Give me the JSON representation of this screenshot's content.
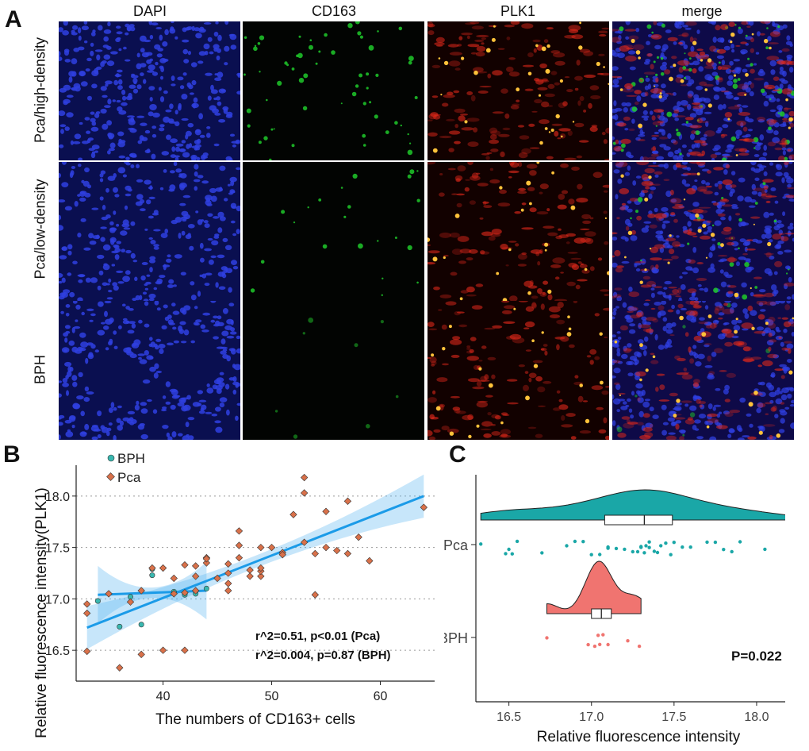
{
  "panel_a": {
    "letter": "A",
    "columns": [
      "DAPI",
      "CD163",
      "PLK1",
      "merge"
    ],
    "rows": [
      "Pca/high-density",
      "Pca/low-density",
      "BPH"
    ],
    "channel_colors": {
      "DAPI": "#2f3fe0",
      "CD163": "#1fc92a",
      "PLK1": "#e0281a"
    }
  },
  "panel_b": {
    "letter": "B",
    "chart_data": {
      "type": "scatter",
      "xlabel": "The numbers of CD163+ cells",
      "ylabel": "Relative fluorescence intensity(PLK1)",
      "xlim": [
        32,
        65
      ],
      "ylim": [
        16.2,
        18.3
      ],
      "x_ticks": [
        40,
        50,
        60
      ],
      "y_ticks": [
        16.5,
        17.0,
        17.5,
        18.0
      ],
      "grid": "horizontal-dotted",
      "legend": "top-left",
      "series": [
        {
          "name": "BPH",
          "color": "#39b8b0",
          "x": [
            34,
            37,
            39,
            39,
            41,
            42,
            43,
            44,
            36,
            38
          ],
          "y": [
            16.98,
            17.02,
            17.29,
            17.23,
            17.07,
            17.04,
            17.05,
            17.1,
            16.73,
            16.75
          ],
          "fit": {
            "x": [
              34,
              44
            ],
            "y": [
              17.04,
              17.08
            ]
          }
        },
        {
          "name": "Pca",
          "color": "#d9714a",
          "x": [
            33,
            33,
            33,
            35,
            36,
            37,
            38,
            38,
            39,
            40,
            40,
            41,
            41,
            42,
            42,
            42,
            43,
            43,
            43,
            44,
            44,
            44,
            45,
            46,
            46,
            46,
            46,
            47,
            47,
            47,
            48,
            48,
            49,
            49,
            49,
            49,
            50,
            51,
            51,
            52,
            53,
            53,
            53,
            54,
            54,
            55,
            55,
            56,
            57,
            57,
            58,
            59,
            64
          ],
          "y": [
            16.95,
            16.86,
            16.49,
            17.05,
            16.33,
            16.97,
            16.46,
            17.08,
            17.3,
            17.3,
            16.5,
            17.2,
            17.05,
            17.33,
            17.06,
            16.5,
            17.22,
            17.32,
            17.08,
            17.4,
            17.35,
            17.39,
            17.2,
            17.34,
            17.25,
            17.15,
            17.08,
            17.52,
            17.66,
            17.4,
            17.28,
            17.22,
            17.5,
            17.22,
            17.27,
            17.3,
            17.5,
            17.45,
            17.43,
            17.82,
            18.18,
            18.03,
            17.55,
            17.04,
            17.44,
            17.85,
            17.5,
            17.47,
            17.44,
            17.95,
            17.6,
            17.37,
            17.89
          ],
          "fit": {
            "x": [
              33,
              64
            ],
            "y": [
              16.72,
              18.0
            ]
          }
        }
      ],
      "annotations": [
        "r^2=0.51,   p<0.01 (Pca)",
        "r^2=0.004, p=0.87 (BPH)"
      ]
    }
  },
  "panel_c": {
    "letter": "C",
    "chart_data": {
      "type": "violin",
      "xlabel": "Relative fluorescence intensity",
      "xlim": [
        16.3,
        18.25
      ],
      "x_ticks": [
        16.5,
        17.0,
        17.5,
        18.0
      ],
      "categories": [
        "Pca",
        "BPH"
      ],
      "p_value": "P=0.022",
      "series": [
        {
          "name": "Pca",
          "color": "#1aa7a7",
          "range": [
            16.33,
            18.19
          ],
          "box": {
            "q1": 17.08,
            "median": 17.32,
            "q3": 17.49
          },
          "points": [
            16.33,
            16.48,
            16.5,
            16.52,
            16.55,
            16.7,
            16.85,
            16.9,
            16.95,
            17.0,
            17.05,
            17.1,
            17.1,
            17.15,
            17.2,
            17.25,
            17.28,
            17.3,
            17.3,
            17.32,
            17.33,
            17.35,
            17.35,
            17.38,
            17.4,
            17.42,
            17.45,
            17.48,
            17.5,
            17.55,
            17.6,
            17.7,
            17.75,
            17.8,
            17.85,
            17.9,
            18.05,
            18.19
          ]
        },
        {
          "name": "BPH",
          "color": "#f07470",
          "range": [
            16.73,
            17.3
          ],
          "box": {
            "q1": 17.0,
            "median": 17.06,
            "q3": 17.12
          },
          "points": [
            16.73,
            16.98,
            17.02,
            17.04,
            17.05,
            17.07,
            17.1,
            17.22,
            17.29
          ]
        }
      ]
    }
  }
}
